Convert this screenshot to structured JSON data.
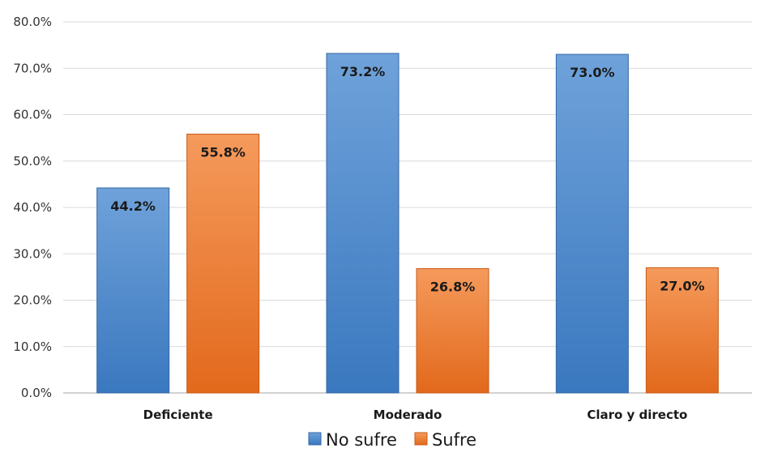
{
  "chart_data": {
    "type": "bar",
    "categories": [
      "Deficiente",
      "Moderado",
      "Claro y directo"
    ],
    "series": [
      {
        "name": "No sufre",
        "values": [
          44.2,
          73.2,
          73.0
        ],
        "color": "#4A86C8",
        "labels": [
          "44.2%",
          "73.2%",
          "73.0%"
        ]
      },
      {
        "name": "Sufre",
        "values": [
          55.8,
          26.8,
          27.0
        ],
        "color": "#EE7C2E",
        "labels": [
          "55.8%",
          "26.8%",
          "27.0%"
        ]
      }
    ],
    "ylim": [
      0,
      80
    ],
    "yticks": [
      0,
      10,
      20,
      30,
      40,
      50,
      60,
      70,
      80
    ],
    "ytick_labels": [
      "0.0%",
      "10.0%",
      "20.0%",
      "30.0%",
      "40.0%",
      "50.0%",
      "60.0%",
      "70.0%",
      "80.0%"
    ],
    "grid": true,
    "legend_position": "bottom"
  }
}
